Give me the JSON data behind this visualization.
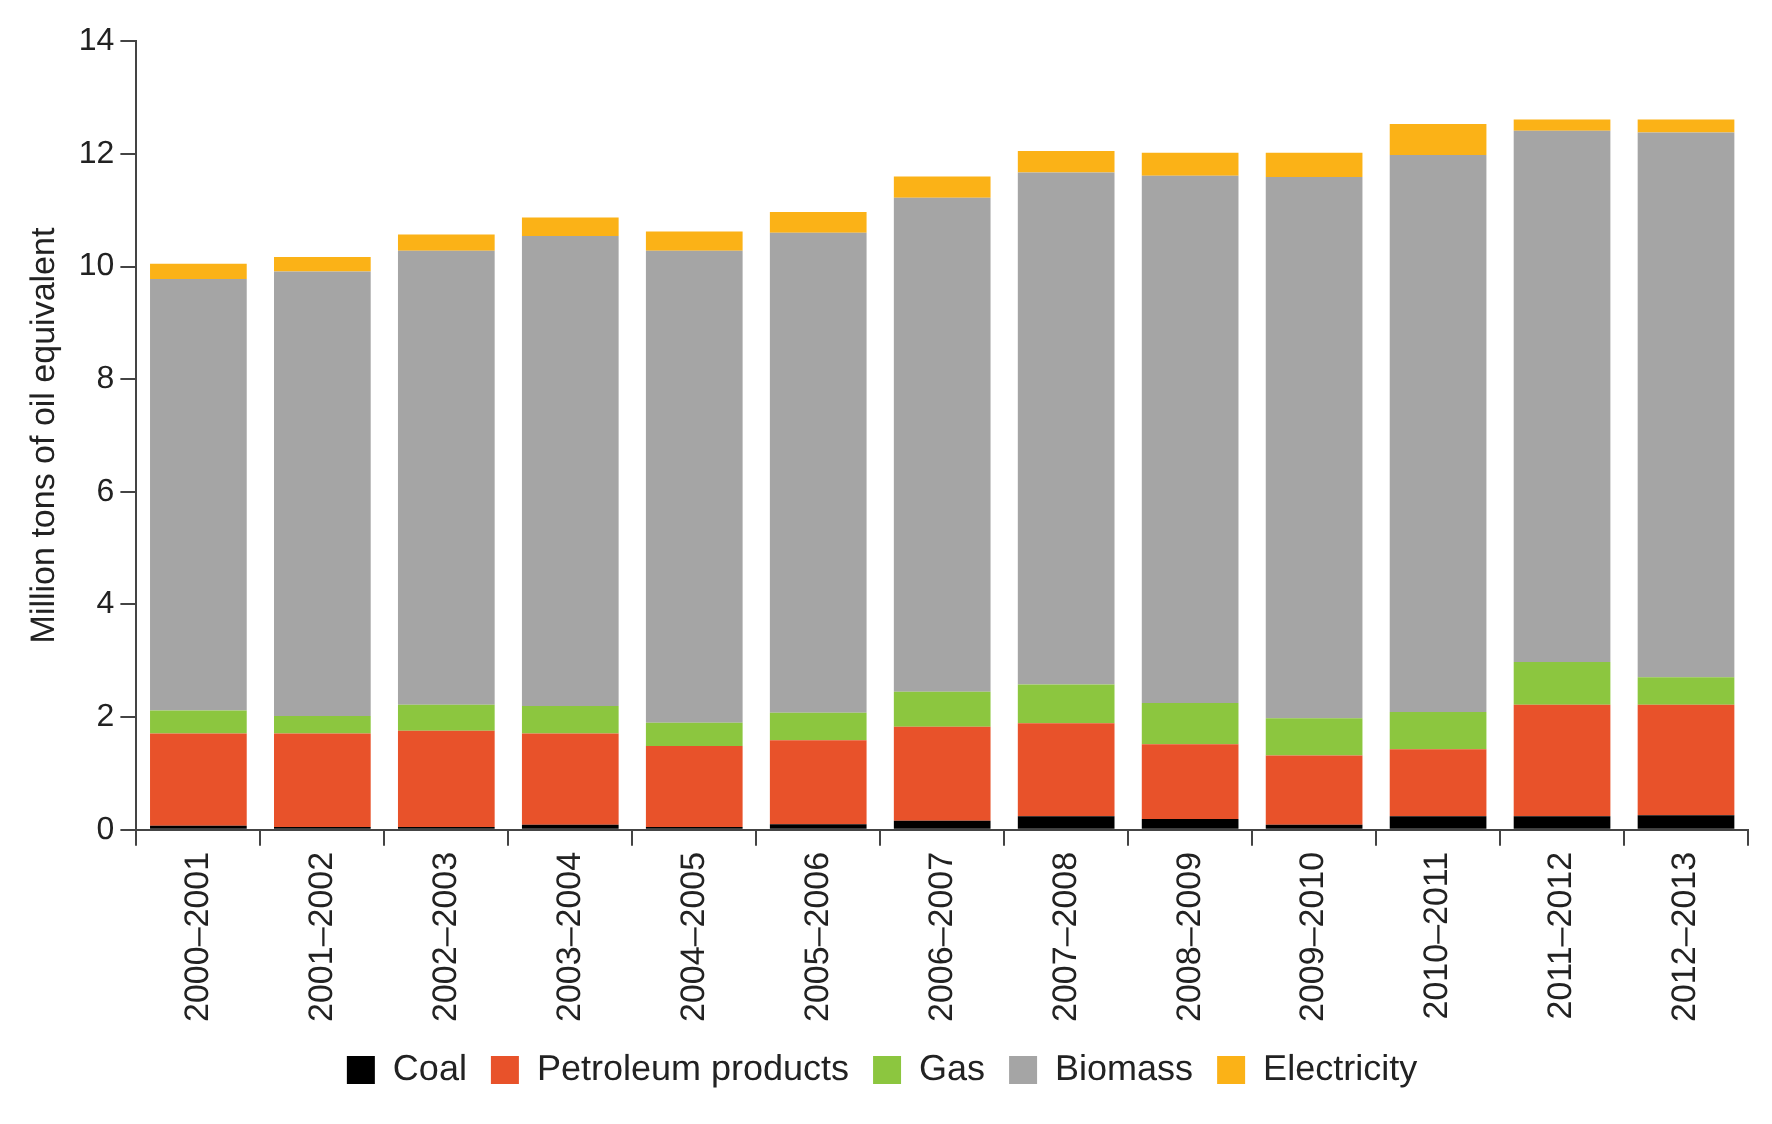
{
  "chart_data": {
    "type": "bar",
    "stacked": true,
    "ylabel": "Million tons of oil equivalent",
    "categories": [
      "2000–2001",
      "2001–2002",
      "2002–2003",
      "2003–2004",
      "2004–2005",
      "2005–2006",
      "2006–2007",
      "2007–2008",
      "2008–2009",
      "2009–2010",
      "2010–2011",
      "2011–2012",
      "2012–2013"
    ],
    "series": [
      {
        "name": "Coal",
        "color": "#000000",
        "values": [
          0.07,
          0.05,
          0.05,
          0.09,
          0.05,
          0.1,
          0.16,
          0.24,
          0.19,
          0.09,
          0.24,
          0.24,
          0.26
        ]
      },
      {
        "name": "Petroleum products",
        "color": "#e8522a",
        "values": [
          1.64,
          1.66,
          1.71,
          1.62,
          1.44,
          1.49,
          1.67,
          1.65,
          1.33,
          1.23,
          1.19,
          1.98,
          1.96
        ]
      },
      {
        "name": "Gas",
        "color": "#8cc63f",
        "values": [
          0.41,
          0.31,
          0.46,
          0.49,
          0.41,
          0.49,
          0.62,
          0.69,
          0.73,
          0.66,
          0.66,
          0.76,
          0.49
        ]
      },
      {
        "name": "Biomass",
        "color": "#a5a5a5",
        "values": [
          7.66,
          7.89,
          8.06,
          8.34,
          8.38,
          8.52,
          8.77,
          9.09,
          9.36,
          9.61,
          9.89,
          9.43,
          9.67
        ]
      },
      {
        "name": "Electricity",
        "color": "#fbb217",
        "values": [
          0.27,
          0.26,
          0.29,
          0.33,
          0.34,
          0.37,
          0.38,
          0.38,
          0.41,
          0.43,
          0.55,
          0.2,
          0.23
        ]
      }
    ],
    "ylim": [
      0,
      14
    ],
    "yticks": [
      0,
      2,
      4,
      6,
      8,
      10,
      12,
      14
    ],
    "grid": false,
    "legend": "bottom"
  }
}
